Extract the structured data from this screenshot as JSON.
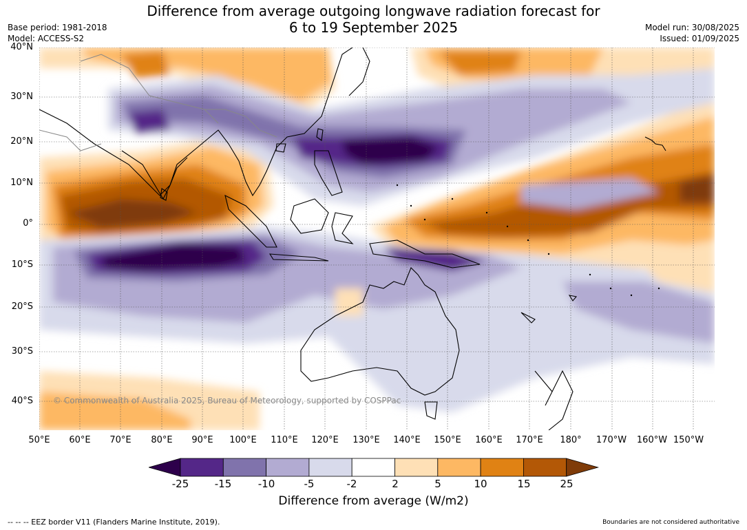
{
  "title": {
    "line1": "Difference from average outgoing longwave radiation forecast for",
    "line2": "6 to 19 September 2025"
  },
  "meta_left": {
    "base_period": "Base period: 1981-2018",
    "model": "Model: ACCESS-S2"
  },
  "meta_right": {
    "model_run": "Model run: 30/08/2025",
    "issued": "Issued: 01/09/2025"
  },
  "map": {
    "extent": {
      "lon": [
        50,
        215
      ],
      "lat": [
        -47,
        40
      ]
    },
    "lat_ticks": [
      "40°N",
      "30°N",
      "20°N",
      "10°N",
      "0°",
      "10°S",
      "20°S",
      "30°S",
      "40°S"
    ],
    "lon_ticks": [
      "50°E",
      "60°E",
      "70°E",
      "80°E",
      "90°E",
      "100°E",
      "110°E",
      "120°E",
      "130°E",
      "140°E",
      "150°E",
      "160°E",
      "170°E",
      "180°",
      "170°W",
      "160°W",
      "150°W"
    ],
    "copyright": "© Commonwealth of Australia 2025, Bureau of Meteorology, supported by COSPPac"
  },
  "colorbar": {
    "ticks": [
      "-25",
      "-15",
      "-10",
      "-5",
      "-2",
      "2",
      "5",
      "10",
      "15",
      "25"
    ],
    "colors": [
      "#2d004b",
      "#542788",
      "#8073ac",
      "#b2abd2",
      "#d8daeb",
      "#ffffff",
      "#fee0b6",
      "#fdb863",
      "#e08214",
      "#b35806",
      "#7f3b08"
    ],
    "label": "Difference from average (W/m2)"
  },
  "footer": {
    "eez": "--  --  -- EEZ border V11 (Flanders Marine Institute, 2019).",
    "disclaimer": "Boundaries are not considered authoritative"
  }
}
